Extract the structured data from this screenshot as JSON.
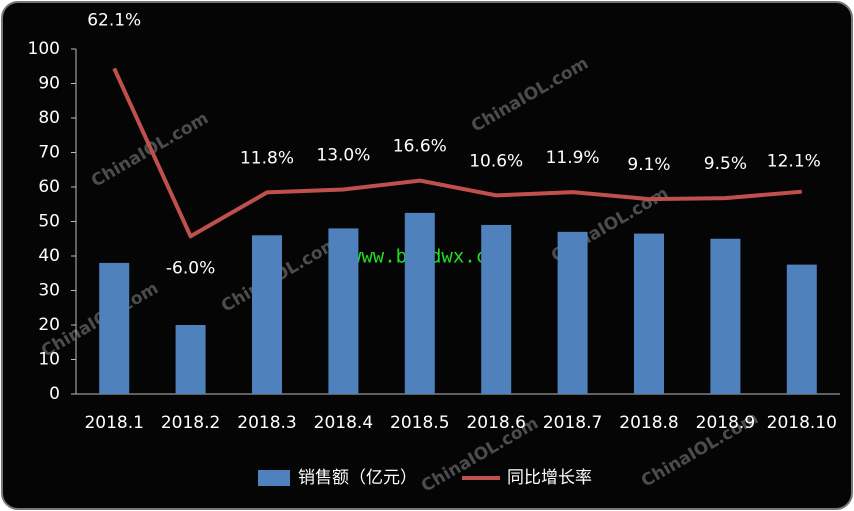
{
  "chart_data": {
    "type": "bar",
    "categories": [
      "2018.1",
      "2018.2",
      "2018.3",
      "2018.4",
      "2018.5",
      "2018.6",
      "2018.7",
      "2018.8",
      "2018.9",
      "2018.10"
    ],
    "series": [
      {
        "name": "销售额（亿元）",
        "type": "bar",
        "color": "#4f81bd",
        "values": [
          38,
          20,
          46,
          48,
          52.5,
          49,
          47,
          46.5,
          45,
          37.5
        ]
      },
      {
        "name": "同比增长率",
        "type": "line",
        "axis": "y2",
        "color": "#c0504d",
        "values": [
          62.1,
          -6.0,
          11.8,
          13.0,
          16.6,
          10.6,
          11.9,
          9.1,
          9.5,
          12.1
        ],
        "value_labels": [
          "62.1%",
          "-6.0%",
          "11.8%",
          "13.0%",
          "16.6%",
          "10.6%",
          "11.9%",
          "9.1%",
          "9.5%",
          "12.1%"
        ]
      }
    ],
    "ylim": [
      0,
      100
    ],
    "yticks": [
      0,
      10,
      20,
      30,
      40,
      50,
      60,
      70,
      80,
      90,
      100
    ],
    "y2lim": [
      -70,
      70
    ],
    "annotations": [
      "ChinaIOL.com",
      "ChinaIOL.com",
      "ChinaIOL.com",
      "ChinaIOL.com",
      "ChinaIOL.com",
      "ChinaIOL.com",
      "ChinaIOL.com",
      "www.bjjdwx.com"
    ]
  }
}
